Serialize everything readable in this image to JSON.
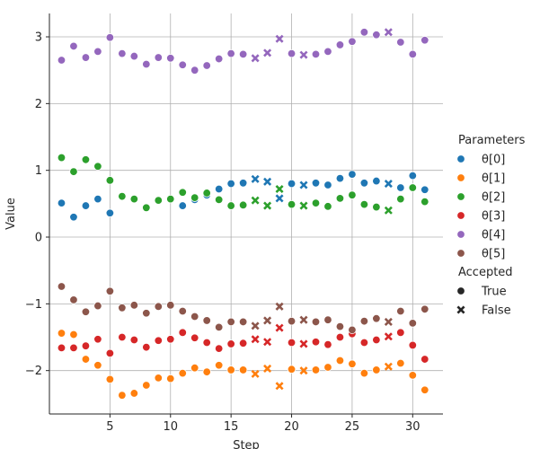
{
  "chart_data": {
    "type": "scatter",
    "xlabel": "Step",
    "ylabel": "Value",
    "xlim": [
      0,
      32.5
    ],
    "ylim": [
      -2.65,
      3.35
    ],
    "xticks": [
      5,
      10,
      15,
      20,
      25,
      30
    ],
    "yticks": [
      -2,
      -1,
      0,
      1,
      2,
      3
    ],
    "grid": true,
    "legend": {
      "placement": "right",
      "hue_title": "Parameters",
      "style_title": "Accepted",
      "style_values": [
        "True",
        "False"
      ]
    },
    "series": [
      {
        "name": "θ[0]",
        "color": "#1f77b4",
        "points": [
          [
            1,
            0.51,
            "True"
          ],
          [
            2,
            0.3,
            "True"
          ],
          [
            3,
            0.47,
            "True"
          ],
          [
            4,
            0.57,
            "True"
          ],
          [
            5,
            0.36,
            "True"
          ],
          [
            11,
            0.47,
            "True"
          ],
          [
            12,
            0.56,
            "True"
          ],
          [
            13,
            0.63,
            "True"
          ],
          [
            14,
            0.72,
            "True"
          ],
          [
            15,
            0.8,
            "True"
          ],
          [
            16,
            0.81,
            "True"
          ],
          [
            17,
            0.87,
            "False"
          ],
          [
            18,
            0.83,
            "False"
          ],
          [
            19,
            0.58,
            "False"
          ],
          [
            20,
            0.8,
            "True"
          ],
          [
            21,
            0.78,
            "False"
          ],
          [
            22,
            0.81,
            "True"
          ],
          [
            23,
            0.78,
            "True"
          ],
          [
            24,
            0.88,
            "True"
          ],
          [
            25,
            0.94,
            "True"
          ],
          [
            26,
            0.81,
            "True"
          ],
          [
            27,
            0.84,
            "True"
          ],
          [
            28,
            0.8,
            "False"
          ],
          [
            29,
            0.74,
            "True"
          ],
          [
            30,
            0.92,
            "True"
          ],
          [
            31,
            0.71,
            "True"
          ]
        ]
      },
      {
        "name": "θ[1]",
        "color": "#ff7f0e",
        "points": [
          [
            1,
            -1.44,
            "True"
          ],
          [
            2,
            -1.46,
            "True"
          ],
          [
            3,
            -1.83,
            "True"
          ],
          [
            4,
            -1.92,
            "True"
          ],
          [
            5,
            -2.13,
            "True"
          ],
          [
            6,
            -2.37,
            "True"
          ],
          [
            7,
            -2.34,
            "True"
          ],
          [
            8,
            -2.22,
            "True"
          ],
          [
            9,
            -2.11,
            "True"
          ],
          [
            10,
            -2.12,
            "True"
          ],
          [
            11,
            -2.04,
            "True"
          ],
          [
            12,
            -1.96,
            "True"
          ],
          [
            13,
            -2.02,
            "True"
          ],
          [
            14,
            -1.92,
            "True"
          ],
          [
            15,
            -1.99,
            "True"
          ],
          [
            16,
            -1.99,
            "True"
          ],
          [
            17,
            -2.05,
            "False"
          ],
          [
            18,
            -1.97,
            "False"
          ],
          [
            19,
            -2.23,
            "False"
          ],
          [
            20,
            -1.98,
            "True"
          ],
          [
            21,
            -2.0,
            "False"
          ],
          [
            22,
            -1.99,
            "True"
          ],
          [
            23,
            -1.95,
            "True"
          ],
          [
            24,
            -1.85,
            "True"
          ],
          [
            25,
            -1.9,
            "True"
          ],
          [
            26,
            -2.04,
            "True"
          ],
          [
            27,
            -1.99,
            "True"
          ],
          [
            28,
            -1.94,
            "False"
          ],
          [
            29,
            -1.89,
            "True"
          ],
          [
            30,
            -2.07,
            "True"
          ],
          [
            31,
            -2.29,
            "True"
          ]
        ]
      },
      {
        "name": "θ[2]",
        "color": "#2ca02c",
        "points": [
          [
            1,
            1.19,
            "True"
          ],
          [
            2,
            0.98,
            "True"
          ],
          [
            3,
            1.16,
            "True"
          ],
          [
            4,
            1.06,
            "True"
          ],
          [
            5,
            0.85,
            "True"
          ],
          [
            6,
            0.61,
            "True"
          ],
          [
            7,
            0.57,
            "True"
          ],
          [
            8,
            0.44,
            "True"
          ],
          [
            9,
            0.55,
            "True"
          ],
          [
            10,
            0.57,
            "True"
          ],
          [
            11,
            0.67,
            "True"
          ],
          [
            12,
            0.59,
            "True"
          ],
          [
            13,
            0.66,
            "True"
          ],
          [
            14,
            0.56,
            "True"
          ],
          [
            15,
            0.47,
            "True"
          ],
          [
            16,
            0.48,
            "True"
          ],
          [
            17,
            0.55,
            "False"
          ],
          [
            18,
            0.47,
            "False"
          ],
          [
            19,
            0.72,
            "False"
          ],
          [
            20,
            0.49,
            "True"
          ],
          [
            21,
            0.47,
            "False"
          ],
          [
            22,
            0.51,
            "True"
          ],
          [
            23,
            0.46,
            "True"
          ],
          [
            24,
            0.58,
            "True"
          ],
          [
            25,
            0.63,
            "True"
          ],
          [
            26,
            0.49,
            "True"
          ],
          [
            27,
            0.45,
            "True"
          ],
          [
            28,
            0.4,
            "False"
          ],
          [
            29,
            0.57,
            "True"
          ],
          [
            30,
            0.74,
            "True"
          ],
          [
            31,
            0.53,
            "True"
          ]
        ]
      },
      {
        "name": "θ[3]",
        "color": "#d62728",
        "points": [
          [
            1,
            -1.66,
            "True"
          ],
          [
            2,
            -1.66,
            "True"
          ],
          [
            3,
            -1.63,
            "True"
          ],
          [
            4,
            -1.53,
            "True"
          ],
          [
            5,
            -1.74,
            "True"
          ],
          [
            6,
            -1.5,
            "True"
          ],
          [
            7,
            -1.54,
            "True"
          ],
          [
            8,
            -1.65,
            "True"
          ],
          [
            9,
            -1.55,
            "True"
          ],
          [
            10,
            -1.53,
            "True"
          ],
          [
            11,
            -1.43,
            "True"
          ],
          [
            12,
            -1.51,
            "True"
          ],
          [
            13,
            -1.58,
            "True"
          ],
          [
            14,
            -1.67,
            "True"
          ],
          [
            15,
            -1.6,
            "True"
          ],
          [
            16,
            -1.59,
            "True"
          ],
          [
            17,
            -1.53,
            "False"
          ],
          [
            18,
            -1.57,
            "False"
          ],
          [
            19,
            -1.36,
            "False"
          ],
          [
            20,
            -1.58,
            "True"
          ],
          [
            21,
            -1.6,
            "False"
          ],
          [
            22,
            -1.57,
            "True"
          ],
          [
            23,
            -1.61,
            "True"
          ],
          [
            24,
            -1.5,
            "True"
          ],
          [
            25,
            -1.45,
            "True"
          ],
          [
            26,
            -1.58,
            "True"
          ],
          [
            27,
            -1.54,
            "True"
          ],
          [
            28,
            -1.49,
            "False"
          ],
          [
            29,
            -1.43,
            "True"
          ],
          [
            30,
            -1.62,
            "True"
          ],
          [
            31,
            -1.83,
            "True"
          ]
        ]
      },
      {
        "name": "θ[4]",
        "color": "#9467bd",
        "points": [
          [
            1,
            2.65,
            "True"
          ],
          [
            2,
            2.86,
            "True"
          ],
          [
            3,
            2.69,
            "True"
          ],
          [
            4,
            2.78,
            "True"
          ],
          [
            5,
            2.99,
            "True"
          ],
          [
            6,
            2.75,
            "True"
          ],
          [
            7,
            2.71,
            "True"
          ],
          [
            8,
            2.59,
            "True"
          ],
          [
            9,
            2.69,
            "True"
          ],
          [
            10,
            2.68,
            "True"
          ],
          [
            11,
            2.58,
            "True"
          ],
          [
            12,
            2.5,
            "True"
          ],
          [
            13,
            2.57,
            "True"
          ],
          [
            14,
            2.67,
            "True"
          ],
          [
            15,
            2.75,
            "True"
          ],
          [
            16,
            2.74,
            "True"
          ],
          [
            17,
            2.68,
            "False"
          ],
          [
            18,
            2.76,
            "False"
          ],
          [
            19,
            2.97,
            "False"
          ],
          [
            20,
            2.75,
            "True"
          ],
          [
            21,
            2.73,
            "False"
          ],
          [
            22,
            2.74,
            "True"
          ],
          [
            23,
            2.78,
            "True"
          ],
          [
            24,
            2.88,
            "True"
          ],
          [
            25,
            2.93,
            "True"
          ],
          [
            26,
            3.07,
            "True"
          ],
          [
            27,
            3.03,
            "True"
          ],
          [
            28,
            3.07,
            "False"
          ],
          [
            29,
            2.92,
            "True"
          ],
          [
            30,
            2.74,
            "True"
          ],
          [
            31,
            2.95,
            "True"
          ]
        ]
      },
      {
        "name": "θ[5]",
        "color": "#8c564b",
        "points": [
          [
            1,
            -0.74,
            "True"
          ],
          [
            2,
            -0.94,
            "True"
          ],
          [
            3,
            -1.12,
            "True"
          ],
          [
            4,
            -1.03,
            "True"
          ],
          [
            5,
            -0.81,
            "True"
          ],
          [
            6,
            -1.06,
            "True"
          ],
          [
            7,
            -1.02,
            "True"
          ],
          [
            8,
            -1.14,
            "True"
          ],
          [
            9,
            -1.04,
            "True"
          ],
          [
            10,
            -1.02,
            "True"
          ],
          [
            11,
            -1.11,
            "True"
          ],
          [
            12,
            -1.19,
            "True"
          ],
          [
            13,
            -1.25,
            "True"
          ],
          [
            14,
            -1.35,
            "True"
          ],
          [
            15,
            -1.27,
            "True"
          ],
          [
            16,
            -1.27,
            "True"
          ],
          [
            17,
            -1.33,
            "False"
          ],
          [
            18,
            -1.25,
            "False"
          ],
          [
            19,
            -1.04,
            "False"
          ],
          [
            20,
            -1.26,
            "True"
          ],
          [
            21,
            -1.24,
            "False"
          ],
          [
            22,
            -1.27,
            "True"
          ],
          [
            23,
            -1.24,
            "True"
          ],
          [
            24,
            -1.34,
            "True"
          ],
          [
            25,
            -1.39,
            "True"
          ],
          [
            26,
            -1.26,
            "True"
          ],
          [
            27,
            -1.22,
            "True"
          ],
          [
            28,
            -1.27,
            "False"
          ],
          [
            29,
            -1.11,
            "True"
          ],
          [
            30,
            -1.29,
            "True"
          ],
          [
            31,
            -1.08,
            "True"
          ]
        ]
      }
    ]
  }
}
